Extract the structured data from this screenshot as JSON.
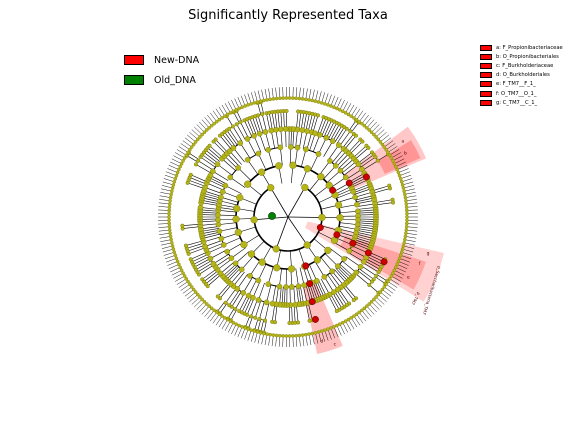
{
  "title": "Significantly Represented Taxa",
  "legend": {
    "groups": [
      {
        "label": "New-DNA",
        "color": "#ff0000"
      },
      {
        "label": "Old_DNA",
        "color": "#008000"
      }
    ]
  },
  "clades": [
    {
      "letter": "a",
      "label": "a: F_Propionibacteriaceae",
      "color": "#ff0000"
    },
    {
      "letter": "b",
      "label": "b: O_Propionibacteriales",
      "color": "#ff0000"
    },
    {
      "letter": "c",
      "label": "c: F_Burkholderiaceae",
      "color": "#ff0000"
    },
    {
      "letter": "d",
      "label": "d: O_Burkholderiales",
      "color": "#ff0000"
    },
    {
      "letter": "e",
      "label": "e: F_TM7__F_1_",
      "color": "#ff0000"
    },
    {
      "letter": "f",
      "label": "f: O_TM7__O_1_",
      "color": "#ff0000"
    },
    {
      "letter": "g",
      "label": "g: C_TM7__C_1_",
      "color": "#ff0000"
    }
  ],
  "sector_labels": {
    "phylum_outer": "p_Saccharibacteria_TM7",
    "phylum_short": "p_TM7"
  },
  "colors": {
    "node_fill": "#b5b51a",
    "node_stroke": "#6b6b00",
    "enriched_node": "#cc0000",
    "highlight": "#ff0000",
    "old_node": "#008000",
    "branch": "#000000"
  }
}
